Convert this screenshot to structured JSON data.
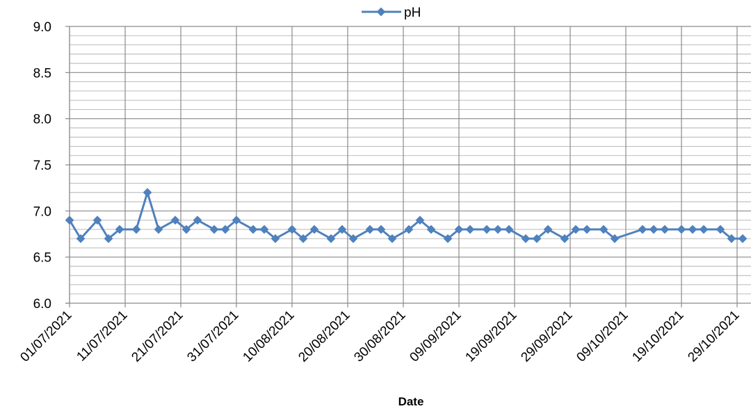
{
  "chart_data": {
    "type": "line",
    "xlabel": "Date",
    "ylabel": "",
    "ylim": [
      6.0,
      9.0
    ],
    "y_ticks": [
      "9.0",
      "8.5",
      "8.0",
      "7.5",
      "7.0",
      "6.5",
      "6.0"
    ],
    "x_range": [
      "2021-07-01",
      "2021-11-01"
    ],
    "x_ticks": [
      "01/07/2021",
      "11/07/2021",
      "21/07/2021",
      "31/07/2021",
      "10/08/2021",
      "20/08/2021",
      "30/08/2021",
      "09/09/2021",
      "19/09/2021",
      "29/09/2021",
      "09/10/2021",
      "19/10/2021",
      "29/10/2021"
    ],
    "grid": true,
    "legend": "top",
    "series": [
      {
        "name": "pH",
        "color": "#4F81BD",
        "marker": "diamond",
        "x": [
          "2021-07-01",
          "2021-07-03",
          "2021-07-06",
          "2021-07-08",
          "2021-07-10",
          "2021-07-13",
          "2021-07-15",
          "2021-07-17",
          "2021-07-20",
          "2021-07-22",
          "2021-07-24",
          "2021-07-27",
          "2021-07-29",
          "2021-07-31",
          "2021-08-03",
          "2021-08-05",
          "2021-08-07",
          "2021-08-10",
          "2021-08-12",
          "2021-08-14",
          "2021-08-17",
          "2021-08-19",
          "2021-08-21",
          "2021-08-24",
          "2021-08-26",
          "2021-08-28",
          "2021-08-31",
          "2021-09-02",
          "2021-09-04",
          "2021-09-07",
          "2021-09-09",
          "2021-09-11",
          "2021-09-14",
          "2021-09-16",
          "2021-09-18",
          "2021-09-21",
          "2021-09-23",
          "2021-09-25",
          "2021-09-28",
          "2021-09-30",
          "2021-10-02",
          "2021-10-05",
          "2021-10-07",
          "2021-10-12",
          "2021-10-14",
          "2021-10-16",
          "2021-10-19",
          "2021-10-21",
          "2021-10-23",
          "2021-10-26",
          "2021-10-28",
          "2021-10-30"
        ],
        "values": [
          6.9,
          6.7,
          6.9,
          6.7,
          6.8,
          6.8,
          7.2,
          6.8,
          6.9,
          6.8,
          6.9,
          6.8,
          6.8,
          6.9,
          6.8,
          6.8,
          6.7,
          6.8,
          6.7,
          6.8,
          6.7,
          6.8,
          6.7,
          6.8,
          6.8,
          6.7,
          6.8,
          6.9,
          6.8,
          6.7,
          6.8,
          6.8,
          6.8,
          6.8,
          6.8,
          6.7,
          6.7,
          6.8,
          6.7,
          6.8,
          6.8,
          6.8,
          6.7,
          6.8,
          6.8,
          6.8,
          6.8,
          6.8,
          6.8,
          6.8,
          6.7,
          6.7
        ]
      }
    ]
  }
}
